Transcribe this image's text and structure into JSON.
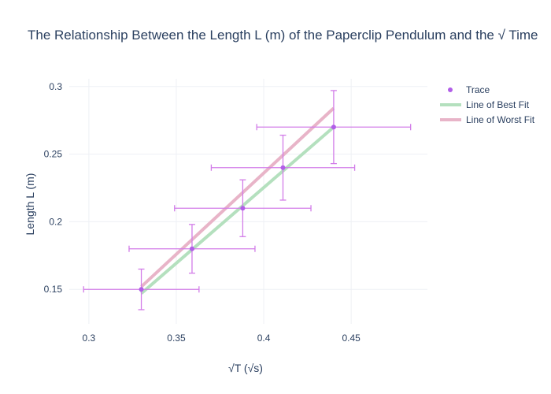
{
  "chart_data": {
    "type": "scatter",
    "title": "The Relationship Between the Length L (m) of the Paperclip Pendulum and the √ Time",
    "xlabel": "√T (√s)",
    "ylabel": "Length L (m)",
    "xlim": [
      0.2888,
      0.4936
    ],
    "ylim": [
      0.1245,
      0.3057
    ],
    "x_ticks": [
      "0.3",
      "0.35",
      "0.4",
      "0.45"
    ],
    "x_tick_values": [
      0.3,
      0.35,
      0.4,
      0.45
    ],
    "y_ticks": [
      "0.15",
      "0.2",
      "0.25",
      "0.3"
    ],
    "y_tick_values": [
      0.15,
      0.2,
      0.25,
      0.3
    ],
    "grid": true,
    "legend_position": "top-right",
    "series": [
      {
        "name": "Trace",
        "kind": "markers",
        "color": "#b15ee8",
        "error_color": "#d27ce8",
        "x": [
          0.33,
          0.359,
          0.388,
          0.411,
          0.44
        ],
        "y": [
          0.15,
          0.18,
          0.21,
          0.24,
          0.27
        ],
        "x_error": [
          0.033,
          0.036,
          0.039,
          0.041,
          0.044
        ],
        "y_error": [
          0.015,
          0.018,
          0.021,
          0.024,
          0.027
        ]
      },
      {
        "name": "Line of Best Fit",
        "kind": "line",
        "color": "#b4e0be",
        "x": [
          0.33,
          0.44
        ],
        "y": [
          0.147,
          0.27
        ]
      },
      {
        "name": "Line of Worst Fit",
        "kind": "line",
        "color": "#e8b4c8",
        "x": [
          0.33,
          0.44
        ],
        "y": [
          0.152,
          0.284
        ]
      }
    ]
  }
}
